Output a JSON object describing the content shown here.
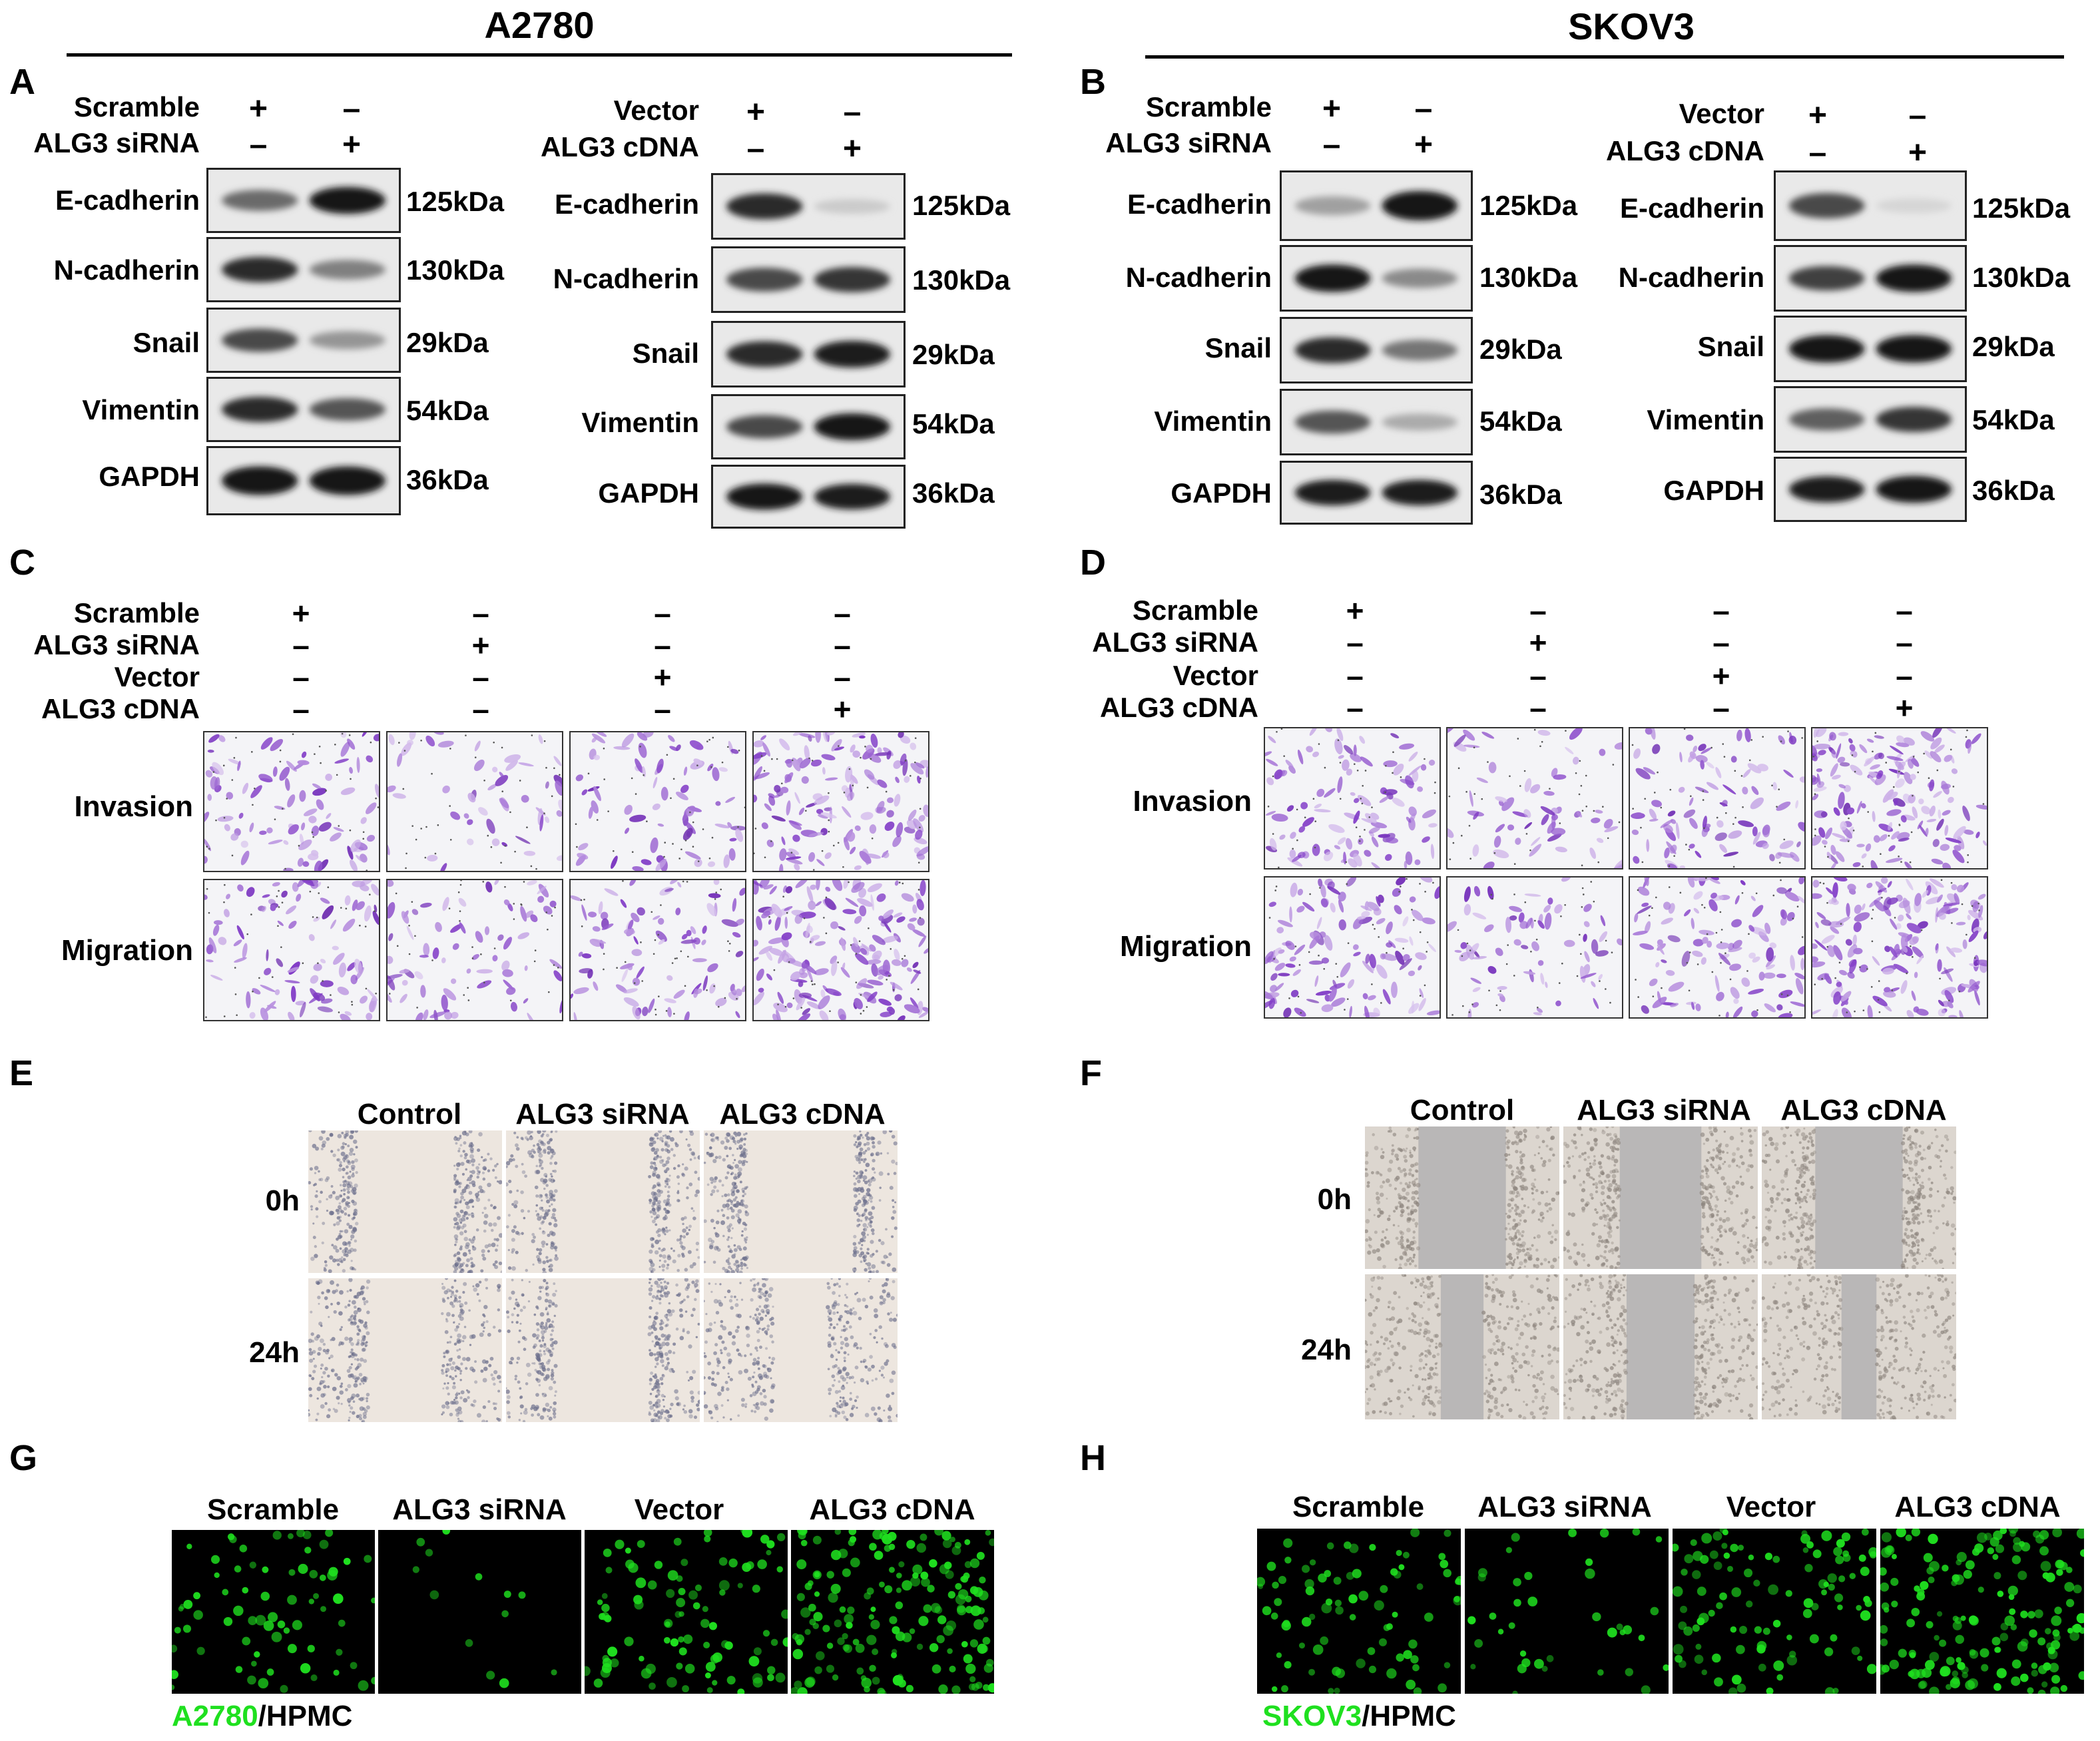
{
  "headers": {
    "a2780": "A2780",
    "skov3": "SKOV3"
  },
  "panel_letters": {
    "A": "A",
    "B": "B",
    "C": "C",
    "D": "D",
    "E": "E",
    "F": "F",
    "G": "G",
    "H": "H"
  },
  "signs": {
    "plus": "+",
    "minus": "–"
  },
  "conditions": {
    "scramble": "Scramble",
    "sirna": "ALG3 siRNA",
    "vector": "Vector",
    "cdna": "ALG3 cDNA"
  },
  "proteins": [
    "E-cadherin",
    "N-cadherin",
    "Snail",
    "Vimentin",
    "GAPDH"
  ],
  "sizes": [
    "125kDa",
    "130kDa",
    "29kDa",
    "54kDa",
    "36kDa"
  ],
  "transwell_rows": [
    "Invasion",
    "Migration"
  ],
  "wound": {
    "columns": [
      "Control",
      "ALG3 siRNA",
      "ALG3 cDNA"
    ],
    "rows": [
      "0h",
      "24h"
    ]
  },
  "adhesion_columns": [
    "Scramble",
    "ALG3 siRNA",
    "Vector",
    "ALG3 cDNA"
  ],
  "captions": {
    "g_cell": "A2780",
    "g_rest": "/HPMC",
    "h_cell": "SKOV3",
    "h_rest": "/HPMC"
  },
  "colors": {
    "green": "#1fe01f",
    "crystal_violet": "#7b3fbf"
  },
  "band_intensity": {
    "A_knockdown": [
      [
        0.6,
        1.0
      ],
      [
        0.9,
        0.5
      ],
      [
        0.75,
        0.4
      ],
      [
        0.9,
        0.7
      ],
      [
        1.0,
        1.0
      ]
    ],
    "A_overexpression": [
      [
        0.9,
        0.15
      ],
      [
        0.75,
        0.85
      ],
      [
        0.9,
        0.95
      ],
      [
        0.75,
        1.0
      ],
      [
        1.0,
        0.95
      ]
    ],
    "B_knockdown": [
      [
        0.35,
        1.0
      ],
      [
        1.0,
        0.45
      ],
      [
        0.9,
        0.55
      ],
      [
        0.7,
        0.3
      ],
      [
        0.95,
        0.95
      ]
    ],
    "B_overexpression": [
      [
        0.75,
        0.1
      ],
      [
        0.8,
        1.0
      ],
      [
        1.0,
        1.0
      ],
      [
        0.65,
        0.85
      ],
      [
        0.95,
        1.0
      ]
    ]
  },
  "cell_density": {
    "C_invasion": [
      0.45,
      0.2,
      0.35,
      0.8
    ],
    "C_migration": [
      0.5,
      0.35,
      0.45,
      1.0
    ],
    "D_invasion": [
      0.55,
      0.25,
      0.45,
      0.9
    ],
    "D_migration": [
      0.65,
      0.3,
      0.55,
      0.95
    ],
    "G_adhesion": [
      0.4,
      0.05,
      0.55,
      1.0
    ],
    "H_adhesion": [
      0.45,
      0.2,
      0.6,
      0.95
    ]
  },
  "wound_gap": {
    "E": [
      [
        0.5,
        0.48,
        0.55
      ],
      [
        0.38,
        0.48,
        0.28
      ]
    ],
    "F": [
      [
        0.45,
        0.42,
        0.45
      ],
      [
        0.22,
        0.35,
        0.18
      ]
    ]
  }
}
